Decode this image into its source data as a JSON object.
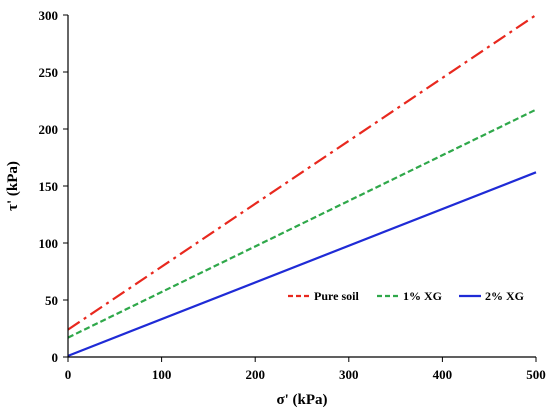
{
  "chart_data": {
    "type": "line",
    "xlabel": "σ' (kPa)",
    "ylabel": "τ' (kPa)",
    "xlim": [
      0,
      500
    ],
    "ylim": [
      0,
      300
    ],
    "xticks": [
      "0",
      "100",
      "200",
      "300",
      "400",
      "500"
    ],
    "yticks": [
      "0",
      "50",
      "100",
      "150",
      "200",
      "250",
      "300"
    ],
    "grid": false,
    "legend_position": "bottom-right",
    "series": [
      {
        "name": "Pure soil",
        "x": [
          0,
          500
        ],
        "y": [
          24,
          300
        ],
        "color": "#e8281e",
        "style": "dash-dot"
      },
      {
        "name": "1% XG",
        "x": [
          0,
          500
        ],
        "y": [
          17,
          217
        ],
        "color": "#2fa84a",
        "style": "dashed"
      },
      {
        "name": "2% XG",
        "x": [
          0,
          500
        ],
        "y": [
          1,
          162
        ],
        "color": "#1f2bd6",
        "style": "solid"
      }
    ]
  }
}
